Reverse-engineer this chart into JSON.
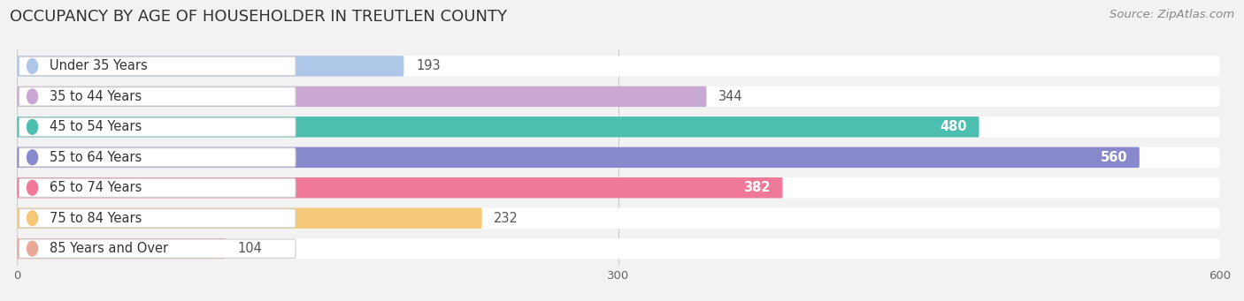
{
  "title": "OCCUPANCY BY AGE OF HOUSEHOLDER IN TREUTLEN COUNTY",
  "source": "Source: ZipAtlas.com",
  "categories": [
    "Under 35 Years",
    "35 to 44 Years",
    "45 to 54 Years",
    "55 to 64 Years",
    "65 to 74 Years",
    "75 to 84 Years",
    "85 Years and Over"
  ],
  "values": [
    193,
    344,
    480,
    560,
    382,
    232,
    104
  ],
  "bar_colors": [
    "#aec6e8",
    "#c9a8d4",
    "#4dbfb0",
    "#8888cc",
    "#f07898",
    "#f5c878",
    "#e8a898"
  ],
  "label_colors": [
    "#555555",
    "#555555",
    "#ffffff",
    "#ffffff",
    "#ffffff",
    "#555555",
    "#555555"
  ],
  "background_color": "#f2f2f2",
  "xlim": [
    0,
    600
  ],
  "xticks": [
    0,
    300,
    600
  ],
  "bar_height": 0.68,
  "title_fontsize": 13,
  "label_fontsize": 10.5,
  "value_fontsize": 10.5,
  "source_fontsize": 9.5
}
